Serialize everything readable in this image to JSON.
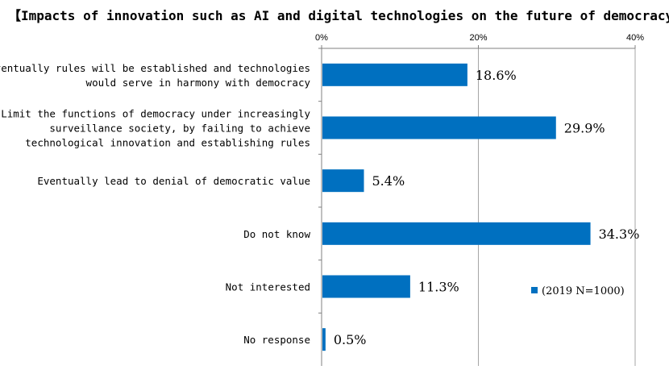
{
  "chart_data": {
    "type": "bar",
    "orientation": "horizontal",
    "title": "【Impacts of innovation such as AI and digital technologies on the future of democracy】",
    "categories": [
      [
        "Eventually rules will be established and technologies",
        "would serve in harmony with democracy"
      ],
      [
        "Limit the functions of democracy under increasingly",
        "surveillance society, by failing to achieve",
        "technological innovation and establishing rules"
      ],
      [
        "Eventually lead to denial of democratic value"
      ],
      [
        "Do not know"
      ],
      [
        "Not interested"
      ],
      [
        "No response"
      ]
    ],
    "series": [
      {
        "name": "(2019 N=1000)",
        "values": [
          18.6,
          29.9,
          5.4,
          34.3,
          11.3,
          0.5
        ],
        "data_labels": [
          "18.6%",
          "29.9%",
          "5.4%",
          "34.3%",
          "11.3%",
          "0.5%"
        ]
      }
    ],
    "xlim": [
      0,
      40
    ],
    "xticks": [
      0,
      20,
      40
    ],
    "xtick_labels": [
      "0%",
      "20%",
      "40%"
    ],
    "axis_position": "top",
    "grid": true,
    "legend_position": "bottom-right",
    "colors": {
      "bar": "#0070C0",
      "grid": "#A6A6A6",
      "axis": "#808080"
    }
  }
}
